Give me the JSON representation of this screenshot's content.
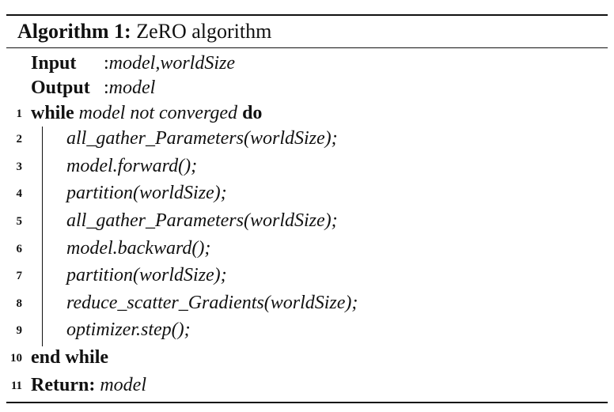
{
  "caption": {
    "label": "Algorithm 1:",
    "title": "ZeRO algorithm"
  },
  "io": {
    "input_label": "Input",
    "input_sep": ":",
    "input_value": "model,worldSize",
    "output_label": "Output",
    "output_sep": ":",
    "output_value": "model"
  },
  "lines": [
    {
      "num": "1",
      "kw1": "while",
      "text": "model not converged",
      "kw2": "do"
    },
    {
      "num": "2",
      "text": "all_gather_Parameters(worldSize);"
    },
    {
      "num": "3",
      "text": "model.forward();"
    },
    {
      "num": "4",
      "text": "partition(worldSize);"
    },
    {
      "num": "5",
      "text": "all_gather_Parameters(worldSize);"
    },
    {
      "num": "6",
      "text": "model.backward();"
    },
    {
      "num": "7",
      "text": "partition(worldSize);"
    },
    {
      "num": "8",
      "text": "reduce_scatter_Gradients(worldSize);"
    },
    {
      "num": "9",
      "text": "optimizer.step();"
    },
    {
      "num": "10",
      "kw1": "end while"
    },
    {
      "num": "11",
      "kw1": "Return:",
      "text": "model"
    }
  ]
}
